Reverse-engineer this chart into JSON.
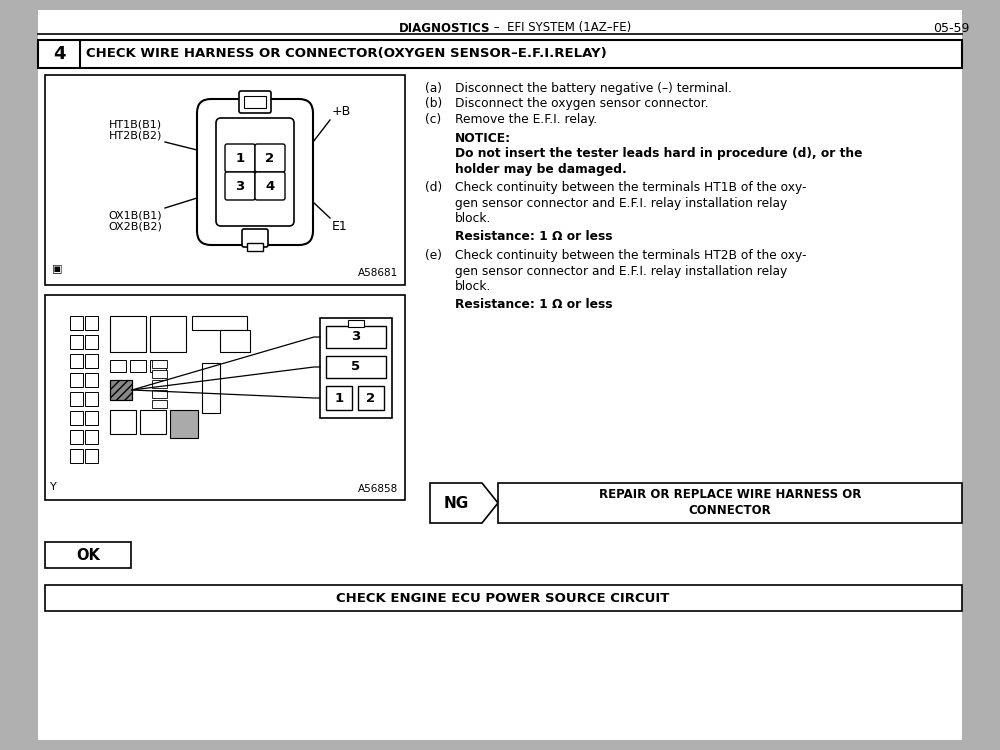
{
  "bg_color": "#b0b0b0",
  "page_color": "#ffffff",
  "page_num": "05-59",
  "header_bold": "DIAGNOSTICS",
  "header_rest": " –  EFI SYSTEM (1AZ–FE)",
  "step_num": "4",
  "step_title": "CHECK WIRE HARNESS OR CONNECTOR(OXYGEN SENSOR–E.F.I.RELAY)",
  "instructions": [
    {
      "key": "(a)",
      "text": "Disconnect the battery negative (–) terminal."
    },
    {
      "key": "(b)",
      "text": "Disconnect the oxygen sensor connector."
    },
    {
      "key": "(c)",
      "text": "Remove the E.F.I. relay."
    }
  ],
  "notice_label": "NOTICE:",
  "notice_bold_line1": "Do not insert the tester leads hard in procedure (d), or the",
  "notice_bold_line2": "holder may be damaged.",
  "step_d_key": "(d)",
  "step_d_lines": [
    "Check continuity between the terminals HT1B of the oxy-",
    "gen sensor connector and E.F.I. relay installation relay",
    "block."
  ],
  "step_d_resistance_bold": "Resistance: 1 Ω or less",
  "step_e_key": "(e)",
  "step_e_lines": [
    "Check continuity between the terminals HT2B of the oxy-",
    "gen sensor connector and E.F.I. relay installation relay",
    "block."
  ],
  "step_e_resistance_bold": "Resistance: 1 Ω or less",
  "ng_label": "NG",
  "ng_line1": "REPAIR OR REPLACE WIRE HARNESS OR",
  "ng_line2": "CONNECTOR",
  "ok_label": "OK",
  "bottom_title": "CHECK ENGINE ECU POWER SOURCE CIRCUIT",
  "diag_label1": "A58681",
  "diag_label2": "A56858"
}
